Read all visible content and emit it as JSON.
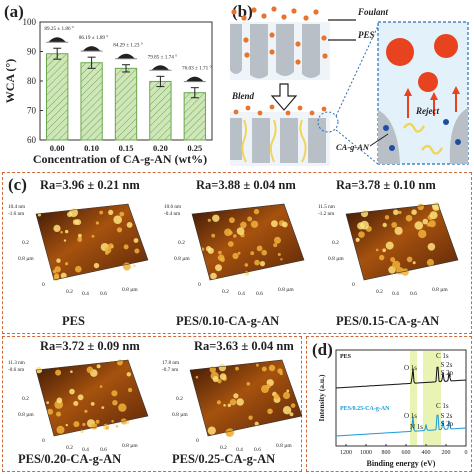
{
  "panel_a": {
    "label": "(a)",
    "chart_data": {
      "type": "bar",
      "categories": [
        "0.00",
        "0.10",
        "0.15",
        "0.20",
        "0.25"
      ],
      "values": [
        89.25,
        86.19,
        84.29,
        79.85,
        76.03
      ],
      "errors": [
        1.86,
        1.89,
        1.23,
        1.74,
        1.71
      ],
      "annotations": [
        "89.25 ± 1.86 °",
        "86.19 ± 1.89 °",
        "84.29 ± 1.23 °",
        "79.85 ± 1.74 °",
        "76.03 ± 1.71 °"
      ],
      "xlabel": "Concentration of CA-g-AN (wt%)",
      "ylabel": "WCA (°)",
      "ylim": [
        60,
        100
      ],
      "yticks": [
        "60",
        "70",
        "80",
        "90",
        "100"
      ],
      "bar_color": "#cfe6b8",
      "bar_stroke": "#6aa84f"
    }
  },
  "panel_b": {
    "label": "(b)",
    "labels": {
      "foulant": "Foulant",
      "pes": "PES",
      "blend": "Blend",
      "reject": "Reject",
      "cagan": "CA-g-AN"
    },
    "colors": {
      "foulant": "#e8732f",
      "reject_ball": "#e8431f",
      "pes": "#b9bfc6",
      "chain": "#f2d45a",
      "inset_bg": "#e3f1fa",
      "inset_border": "#2b6cb3"
    }
  },
  "panel_c": {
    "label": "(c)",
    "images": [
      {
        "ra": "Ra=3.96 ± 0.21 nm",
        "caption": "PES",
        "z_top": "10.4 nm",
        "z_bot": "-1.6 nm"
      },
      {
        "ra": "Ra=3.88 ± 0.04 nm",
        "caption": "PES/0.10-CA-g-AN",
        "z_top": "10.6 nm",
        "z_bot": "-0.4 nm"
      },
      {
        "ra": "Ra=3.78 ± 0.10 nm",
        "caption": "PES/0.15-CA-g-AN",
        "z_top": "11.5 nm",
        "z_bot": "-1.2 nm"
      },
      {
        "ra": "Ra=3.72 ± 0.09 nm",
        "caption": "PES/0.20-CA-g-AN",
        "z_top": "11.3 nm",
        "z_bot": "-0.6 nm"
      },
      {
        "ra": "Ra=3.63 ± 0.04 nm",
        "caption": "PES/0.25-CA-g-AN",
        "z_top": "17.8 nm",
        "z_bot": "-0.7 nm"
      }
    ],
    "axis_ticks": [
      "0",
      "0.2",
      "0.4",
      "0.6",
      "0.8 µm"
    ]
  },
  "panel_d": {
    "label": "(d)",
    "chart_data": {
      "type": "line",
      "xlabel": "Binding energy (eV)",
      "ylabel": "Intensity (a.u.)",
      "xticks": [
        "1200",
        "1000",
        "800",
        "600",
        "400",
        "200",
        "0"
      ],
      "series": [
        {
          "name": "PES",
          "color": "#111111",
          "peaks": [
            "O 1s",
            "C 1s",
            "S 2s",
            "S 2p"
          ]
        },
        {
          "name": "PES/0.25-CA-g-AN",
          "color": "#1a9ad6",
          "peaks": [
            "O 1s",
            "N 1s",
            "C 1s",
            "S 2s",
            "S 2p"
          ]
        }
      ],
      "highlight_color": "#e9f3b3"
    }
  }
}
